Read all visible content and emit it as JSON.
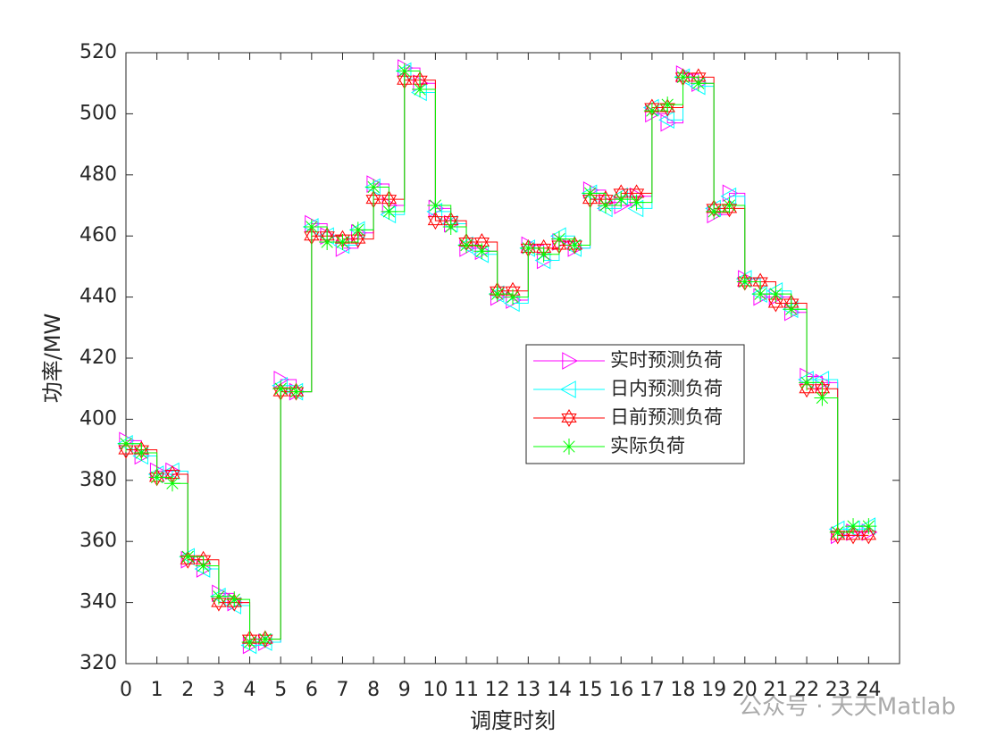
{
  "chart_data": {
    "type": "line",
    "xlabel": "调度时刻",
    "ylabel": "功率/MW",
    "x": [
      0,
      0.5,
      1,
      1.5,
      2,
      2.5,
      3,
      3.5,
      4,
      4.5,
      5,
      5.5,
      6,
      6.5,
      7,
      7.5,
      8,
      8.5,
      9,
      9.5,
      10,
      10.5,
      11,
      11.5,
      12,
      12.5,
      13,
      13.5,
      14,
      14.5,
      15,
      15.5,
      16,
      16.5,
      17,
      17.5,
      18,
      18.5,
      19,
      19.5,
      20,
      20.5,
      21,
      21.5,
      22,
      22.5,
      23,
      23.5,
      24
    ],
    "series": [
      {
        "name": "实时预测负荷",
        "color": "#ff00ff",
        "marker": "triangle-right",
        "values": [
          393,
          388,
          383,
          383,
          354,
          351,
          343,
          340,
          326,
          327,
          413,
          409,
          464,
          460,
          456,
          461,
          477,
          470,
          515,
          510,
          469,
          464,
          456,
          455,
          440,
          439,
          457,
          452,
          458,
          456,
          475,
          471,
          470,
          473,
          500,
          497,
          513,
          510,
          467,
          474,
          446,
          440,
          440,
          435,
          414,
          412,
          362,
          363,
          363
        ]
      },
      {
        "name": "日内预测负荷",
        "color": "#00ffff",
        "marker": "triangle-left",
        "values": [
          392,
          388,
          382,
          383,
          355,
          351,
          342,
          339,
          326,
          327,
          411,
          409,
          463,
          460,
          457,
          462,
          476,
          467,
          514,
          507,
          468,
          464,
          457,
          454,
          441,
          438,
          456,
          452,
          460,
          456,
          474,
          469,
          473,
          469,
          502,
          498,
          512,
          509,
          469,
          473,
          446,
          441,
          442,
          436,
          413,
          413,
          364,
          364,
          365
        ]
      },
      {
        "name": "日前预测负荷",
        "color": "#ff0000",
        "marker": "hexagram",
        "values": [
          390,
          390,
          381,
          382,
          354,
          354,
          340,
          340,
          328,
          328,
          409,
          409,
          460,
          460,
          459,
          459,
          472,
          472,
          511,
          511,
          465,
          465,
          458,
          458,
          442,
          442,
          456,
          456,
          457,
          457,
          472,
          472,
          474,
          474,
          502,
          502,
          512,
          512,
          469,
          469,
          445,
          445,
          438,
          438,
          410,
          410,
          362,
          362,
          362
        ]
      },
      {
        "name": "实际负荷",
        "color": "#00ff00",
        "marker": "asterisk",
        "values": [
          392,
          389,
          381,
          379,
          355,
          352,
          342,
          341,
          327,
          328,
          410,
          409,
          463,
          458,
          458,
          462,
          476,
          468,
          514,
          508,
          470,
          463,
          457,
          455,
          441,
          440,
          456,
          454,
          459,
          457,
          474,
          470,
          472,
          471,
          501,
          503,
          512,
          510,
          468,
          470,
          445,
          441,
          441,
          436,
          412,
          407,
          363,
          365,
          365
        ]
      }
    ],
    "xlim": [
      0,
      25
    ],
    "ylim": [
      320,
      520
    ],
    "xticks": [
      0,
      1,
      2,
      3,
      4,
      5,
      6,
      7,
      8,
      9,
      10,
      11,
      12,
      13,
      14,
      15,
      16,
      17,
      18,
      19,
      20,
      21,
      22,
      23,
      24
    ],
    "yticks": [
      320,
      340,
      360,
      380,
      400,
      420,
      440,
      460,
      480,
      500,
      520
    ],
    "legend": "center-right",
    "watermark": "公众号 · 天天Matlab"
  }
}
